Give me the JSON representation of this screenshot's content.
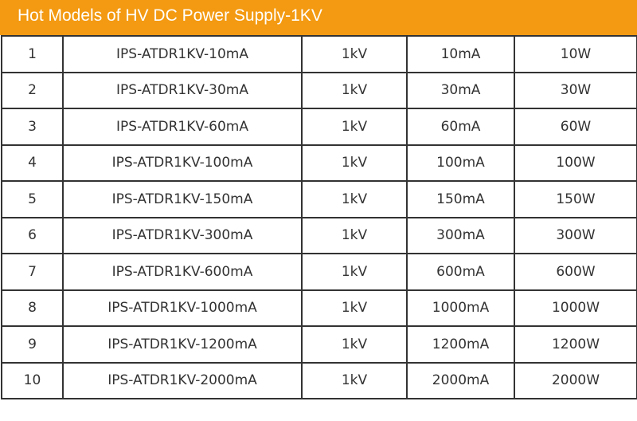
{
  "header": {
    "title": "Hot Models of HV DC Power Supply-1KV"
  },
  "table": {
    "rows": [
      [
        "1",
        "IPS-ATDR1KV-10mA",
        "1kV",
        "10mA",
        "10W"
      ],
      [
        "2",
        "IPS-ATDR1KV-30mA",
        "1kV",
        "30mA",
        "30W"
      ],
      [
        "3",
        "IPS-ATDR1KV-60mA",
        "1kV",
        "60mA",
        "60W"
      ],
      [
        "4",
        "IPS-ATDR1KV-100mA",
        "1kV",
        "100mA",
        "100W"
      ],
      [
        "5",
        "IPS-ATDR1KV-150mA",
        "1kV",
        "150mA",
        "150W"
      ],
      [
        "6",
        "IPS-ATDR1KV-300mA",
        "1kV",
        "300mA",
        "300W"
      ],
      [
        "7",
        "IPS-ATDR1KV-600mA",
        "1kV",
        "600mA",
        "600W"
      ],
      [
        "8",
        "IPS-ATDR1KV-1000mA",
        "1kV",
        "1000mA",
        "1000W"
      ],
      [
        "9",
        "IPS-ATDR1KV-1200mA",
        "1kV",
        "1200mA",
        "1200W"
      ],
      [
        "10",
        "IPS-ATDR1KV-2000mA",
        "1kV",
        "2000mA",
        "2000W"
      ]
    ]
  }
}
